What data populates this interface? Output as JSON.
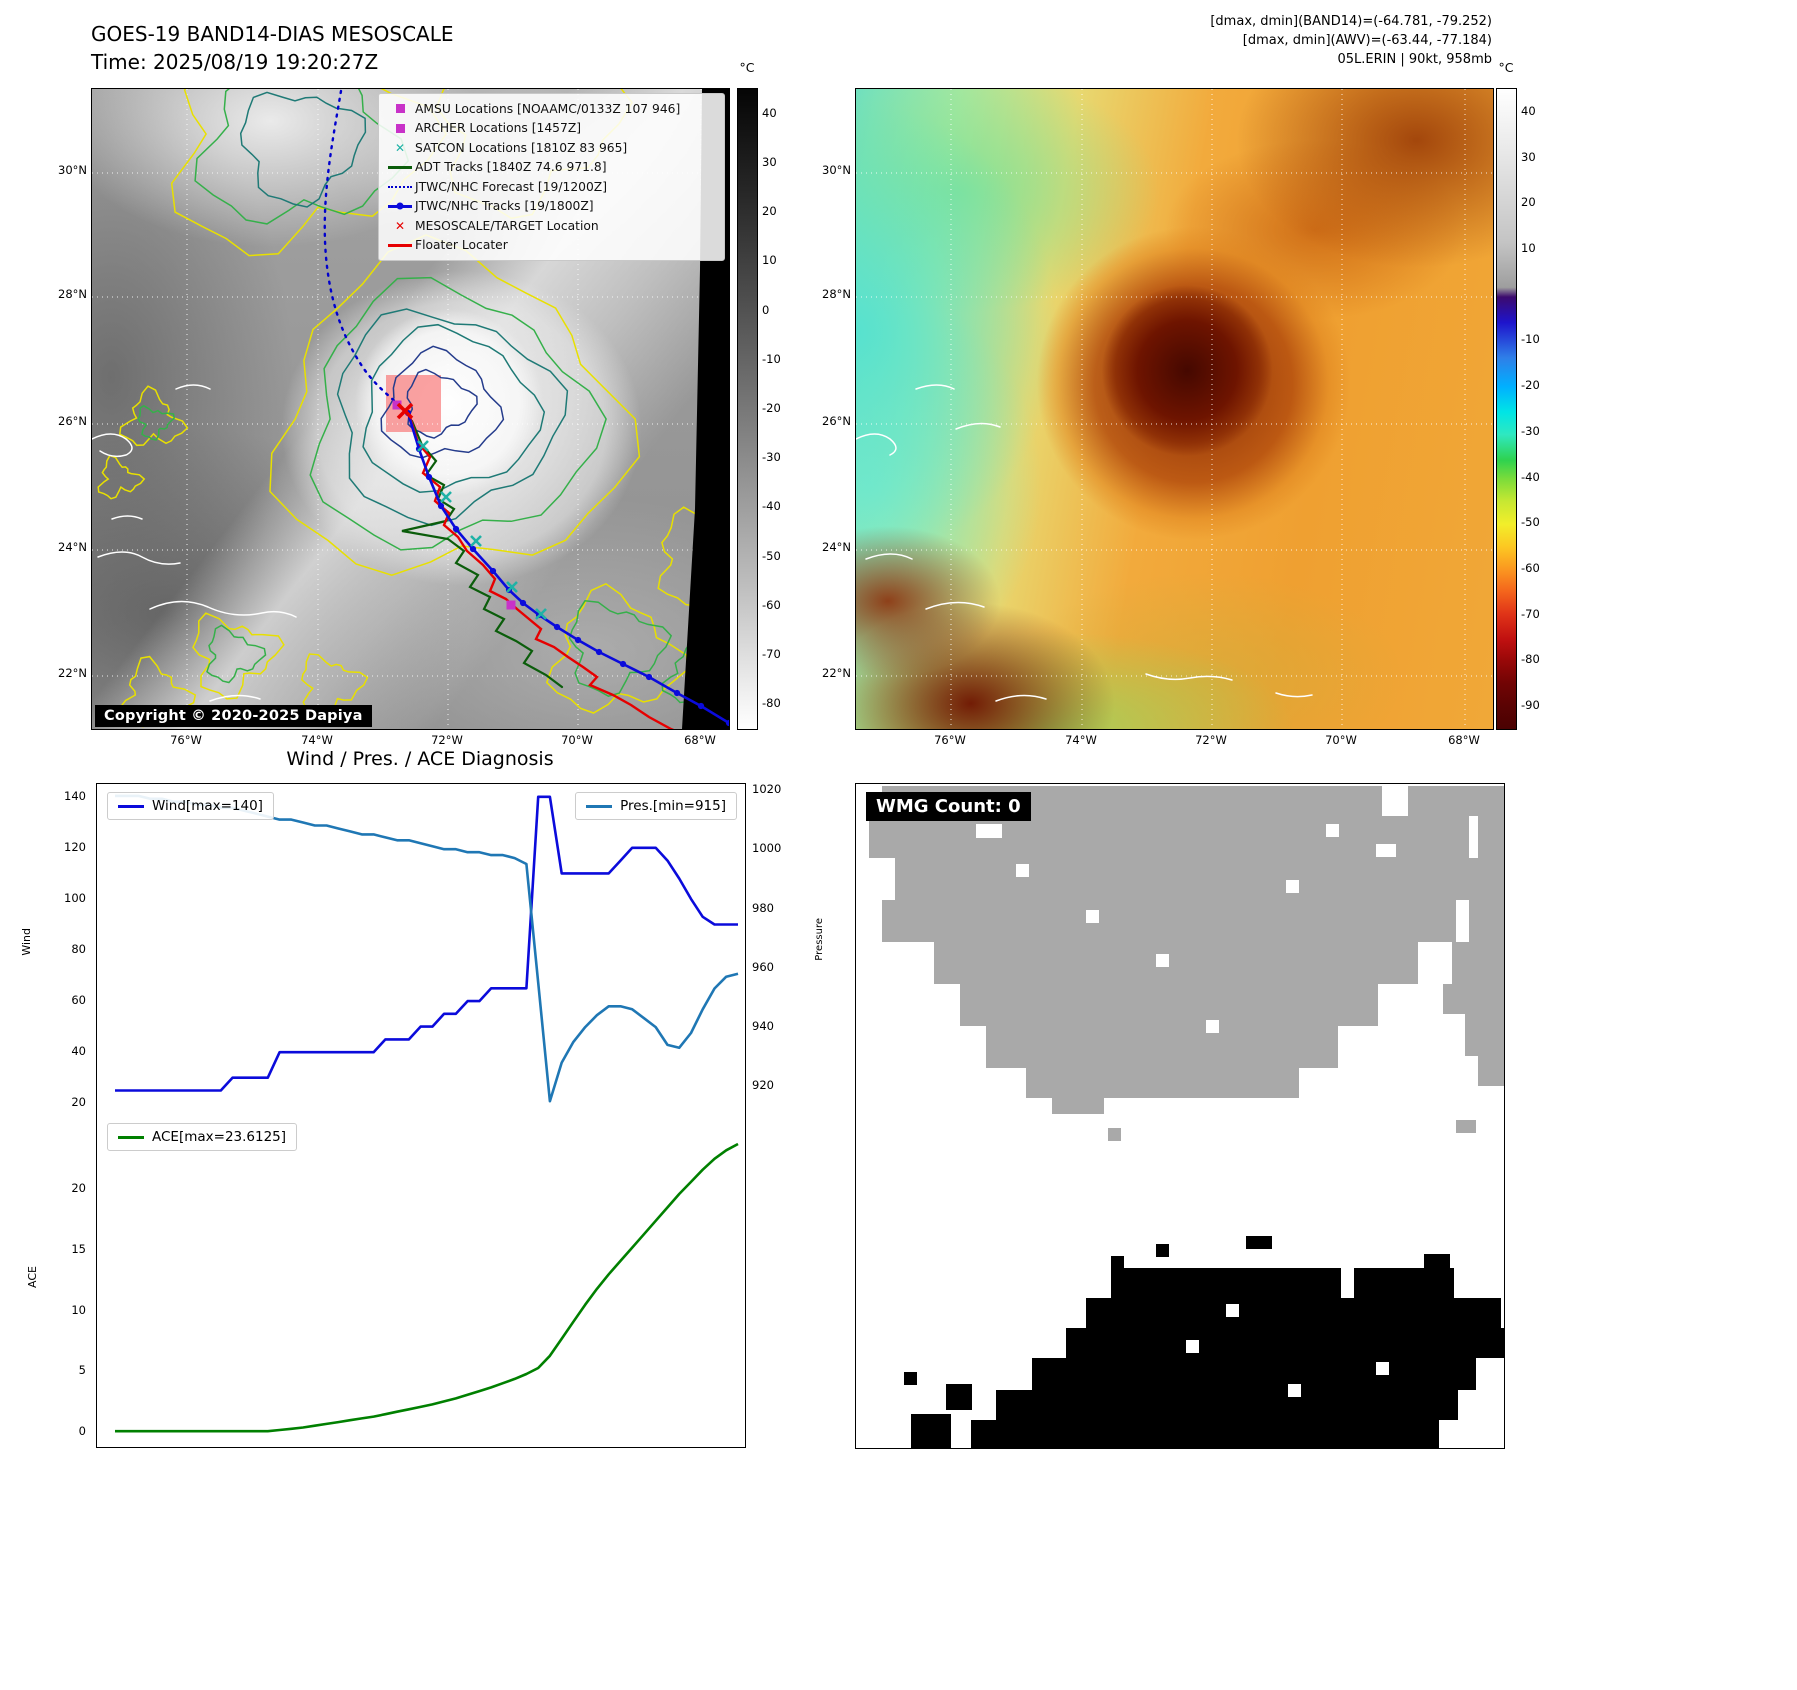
{
  "panels": {
    "band14": {
      "title": "GOES-19 BAND14-DIAS MESOSCALE",
      "time": "Time: 2025/08/19 19:20:27Z",
      "copyright": "Copyright © 2020-2025 Dapiya",
      "colorbar": {
        "unit": "°C",
        "range": [
          45,
          -85
        ],
        "ticks": [
          40,
          30,
          20,
          10,
          0,
          -10,
          -20,
          -30,
          -40,
          -50,
          -60,
          -70,
          -80
        ]
      },
      "lat_ticks": [
        "30°N",
        "28°N",
        "26°N",
        "24°N",
        "22°N"
      ],
      "lon_ticks": [
        "76°W",
        "74°W",
        "72°W",
        "70°W",
        "68°W"
      ],
      "legend": [
        {
          "marker": "square",
          "color": "#c832c8",
          "label": "AMSU Locations [NOAAMC/0133Z 107 946]"
        },
        {
          "marker": "square",
          "color": "#c832c8",
          "label": "ARCHER Locations [1457Z]"
        },
        {
          "marker": "x",
          "color": "#1fb2a6",
          "label": "SATCON Locations [1810Z 83 965]"
        },
        {
          "marker": "line",
          "color": "#0b5d0b",
          "label": "ADT Tracks [1840Z 74.6 971.8]"
        },
        {
          "marker": "dotted",
          "color": "#0000cd",
          "label": "JTWC/NHC Forecast [19/1200Z]"
        },
        {
          "marker": "line-dot",
          "color": "#0b0bdb",
          "label": "JTWC/NHC Tracks [19/1800Z]"
        },
        {
          "marker": "x",
          "color": "#e60000",
          "label": "MESOSCALE/TARGET Location"
        },
        {
          "marker": "line",
          "color": "#e60000",
          "label": "Floater Locater"
        }
      ]
    },
    "awv": {
      "header_lines": [
        "[dmax, dmin](BAND14)=(-64.781, -79.252)",
        "[dmax, dmin](AWV)=(-63.44, -77.184)",
        "05L.ERIN | 90kt, 958mb"
      ],
      "colorbar": {
        "unit": "°C",
        "range": [
          45,
          -95
        ],
        "ticks": [
          40,
          30,
          20,
          10,
          -10,
          -20,
          -30,
          -40,
          -50,
          -60,
          -70,
          -80,
          -90
        ]
      },
      "lat_ticks": [
        "30°N",
        "28°N",
        "26°N",
        "24°N",
        "22°N"
      ],
      "lon_ticks": [
        "76°W",
        "74°W",
        "72°W",
        "70°W",
        "68°W"
      ]
    },
    "diagnosis": {
      "title": "Wind / Pres. / ACE Diagnosis"
    },
    "wmg": {
      "label": "WMG Count: 0"
    }
  },
  "chart_data": [
    {
      "type": "line",
      "title": "Wind / Pres. / ACE Diagnosis",
      "ylabel": "Wind",
      "y2label": "Pressure",
      "ylim": [
        15,
        145
      ],
      "y2lim": [
        910,
        1022
      ],
      "yticks": [
        20,
        40,
        60,
        80,
        100,
        120,
        140
      ],
      "y2ticks": [
        920,
        940,
        960,
        980,
        1000,
        1020
      ],
      "x_axis_labels_visible": false,
      "legend_position": "top",
      "series": [
        {
          "name": "Wind[max=140]",
          "color": "#0b0bdb",
          "axis": "left",
          "values": [
            25,
            25,
            25,
            25,
            25,
            25,
            25,
            25,
            25,
            25,
            30,
            30,
            30,
            30,
            40,
            40,
            40,
            40,
            40,
            40,
            40,
            40,
            40,
            45,
            45,
            45,
            50,
            50,
            55,
            55,
            60,
            60,
            65,
            65,
            65,
            65,
            140,
            140,
            110,
            110,
            110,
            110,
            110,
            115,
            120,
            120,
            120,
            115,
            108,
            100,
            93,
            90,
            90,
            90
          ]
        },
        {
          "name": "Pres.[min=915]",
          "color": "#1f77b4",
          "axis": "right",
          "values": [
            1018,
            1018,
            1018,
            1017,
            1017,
            1016,
            1016,
            1015,
            1015,
            1014,
            1014,
            1013,
            1012,
            1011,
            1010,
            1010,
            1009,
            1008,
            1008,
            1007,
            1006,
            1005,
            1005,
            1004,
            1003,
            1003,
            1002,
            1001,
            1000,
            1000,
            999,
            999,
            998,
            998,
            997,
            995,
            955,
            915,
            928,
            935,
            940,
            944,
            947,
            947,
            946,
            943,
            940,
            934,
            933,
            938,
            946,
            953,
            957,
            958
          ]
        }
      ]
    },
    {
      "type": "line",
      "ylabel": "ACE",
      "ylim": [
        -1.3,
        26
      ],
      "yticks": [
        0,
        5,
        10,
        15,
        20
      ],
      "x_axis_labels_visible": false,
      "legend_position": "top-left",
      "series": [
        {
          "name": "ACE[max=23.6125]",
          "color": "#008000",
          "axis": "left",
          "values": [
            0,
            0,
            0,
            0,
            0,
            0,
            0,
            0,
            0,
            0,
            0,
            0,
            0,
            0,
            0.1,
            0.2,
            0.3,
            0.45,
            0.6,
            0.75,
            0.9,
            1.05,
            1.2,
            1.4,
            1.6,
            1.8,
            2.0,
            2.2,
            2.45,
            2.7,
            3.0,
            3.3,
            3.6,
            3.95,
            4.3,
            4.7,
            5.2,
            6.2,
            7.6,
            9.0,
            10.4,
            11.7,
            12.9,
            14.0,
            15.1,
            16.2,
            17.3,
            18.4,
            19.5,
            20.5,
            21.5,
            22.4,
            23.1,
            23.6125
          ]
        }
      ]
    }
  ]
}
